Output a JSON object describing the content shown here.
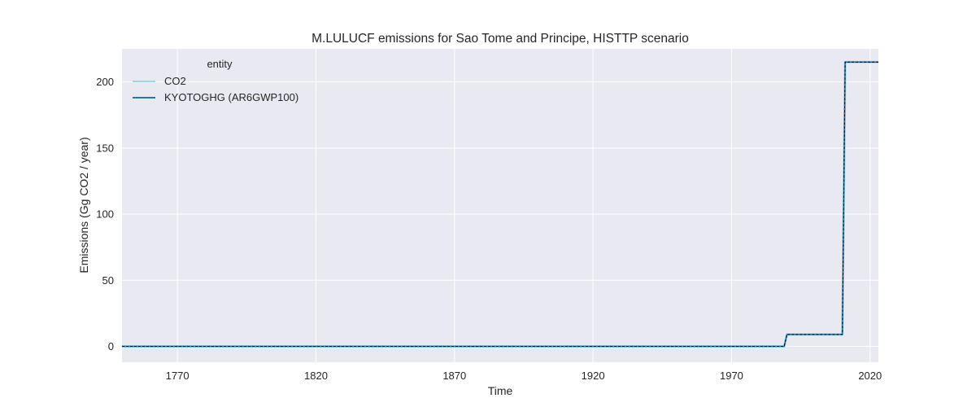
{
  "chart_data": {
    "type": "line",
    "title": "M.LULUCF emissions for Sao Tome and Principe, HISTTP scenario",
    "xlabel": "Time",
    "ylabel": "Emissions (Gg CO2 / year)",
    "xlim": [
      1750,
      2023
    ],
    "ylim": [
      -12,
      225
    ],
    "x_ticks": [
      1770,
      1820,
      1870,
      1920,
      1970,
      2020
    ],
    "y_ticks": [
      0,
      50,
      100,
      150,
      200
    ],
    "grid": true,
    "legend": {
      "title": "entity",
      "placement": "top-left"
    },
    "series": [
      {
        "name": "CO2",
        "color": "#9dd9e3",
        "style": "solid",
        "x": [
          1750,
          1989,
          1990,
          2010,
          2011,
          2023
        ],
        "y": [
          0,
          0,
          9,
          9,
          215,
          215
        ]
      },
      {
        "name": "KYOTOGHG (AR6GWP100)",
        "color": "#1f77b4",
        "style": "solid",
        "x": [
          1750,
          1989,
          1990,
          2010,
          2011,
          2023
        ],
        "y": [
          0,
          0,
          9,
          9,
          215,
          215
        ]
      },
      {
        "name": "",
        "color": "#000000",
        "style": "dashed",
        "x": [
          1750,
          1989,
          1990,
          2010,
          2011,
          2023
        ],
        "y": [
          0,
          0,
          9,
          9,
          215,
          215
        ]
      }
    ]
  },
  "colors": {
    "plot_background": "#e9e9f1",
    "grid": "#ffffff"
  }
}
